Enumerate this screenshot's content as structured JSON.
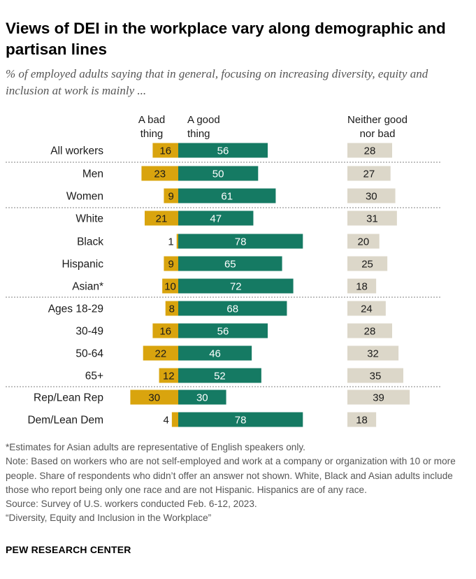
{
  "title": "Views of DEI in the workplace vary along demographic and partisan lines",
  "subtitle": "% of employed adults saying that in general, focusing on increasing diversity, equity and inclusion at work is mainly ...",
  "colors": {
    "bad": "#d9a40e",
    "good": "#157a63",
    "neither": "#dcd7c9",
    "separator": "#9a9a9a"
  },
  "chart_data": {
    "type": "bar",
    "column_headers": {
      "bad": [
        "A bad",
        "thing"
      ],
      "good": [
        "A good",
        "thing"
      ],
      "neither": [
        "Neither good",
        "nor bad"
      ]
    },
    "categories": [
      "All workers",
      "Men",
      "Women",
      "White",
      "Black",
      "Hispanic",
      "Asian*",
      "Ages 18-29",
      "30-49",
      "50-64",
      "65+",
      "Rep/Lean Rep",
      "Dem/Lean Dem"
    ],
    "groups": [
      [
        0
      ],
      [
        1,
        2
      ],
      [
        3,
        4,
        5,
        6
      ],
      [
        7,
        8,
        9,
        10
      ],
      [
        11,
        12
      ]
    ],
    "series": [
      {
        "name": "A bad thing",
        "values": [
          16,
          23,
          9,
          21,
          1,
          9,
          10,
          8,
          16,
          22,
          12,
          30,
          4
        ]
      },
      {
        "name": "A good thing",
        "values": [
          56,
          50,
          61,
          47,
          78,
          65,
          72,
          68,
          56,
          46,
          52,
          30,
          78
        ]
      },
      {
        "name": "Neither good nor bad",
        "values": [
          28,
          27,
          30,
          31,
          20,
          25,
          18,
          24,
          28,
          32,
          35,
          39,
          18
        ]
      }
    ]
  },
  "notes": [
    "*Estimates for Asian adults are representative of English speakers only.",
    "Note: Based on workers who are not self-employed and work at a company or organization with 10 or more people. Share of respondents who didn’t offer an answer not shown. White, Black and Asian adults include those who report being only one race and are not Hispanic. Hispanics are of any race.",
    "Source: Survey of U.S. workers conducted Feb. 6-12, 2023.",
    "“Diversity, Equity and Inclusion in the Workplace”"
  ],
  "footer": "PEW RESEARCH CENTER"
}
